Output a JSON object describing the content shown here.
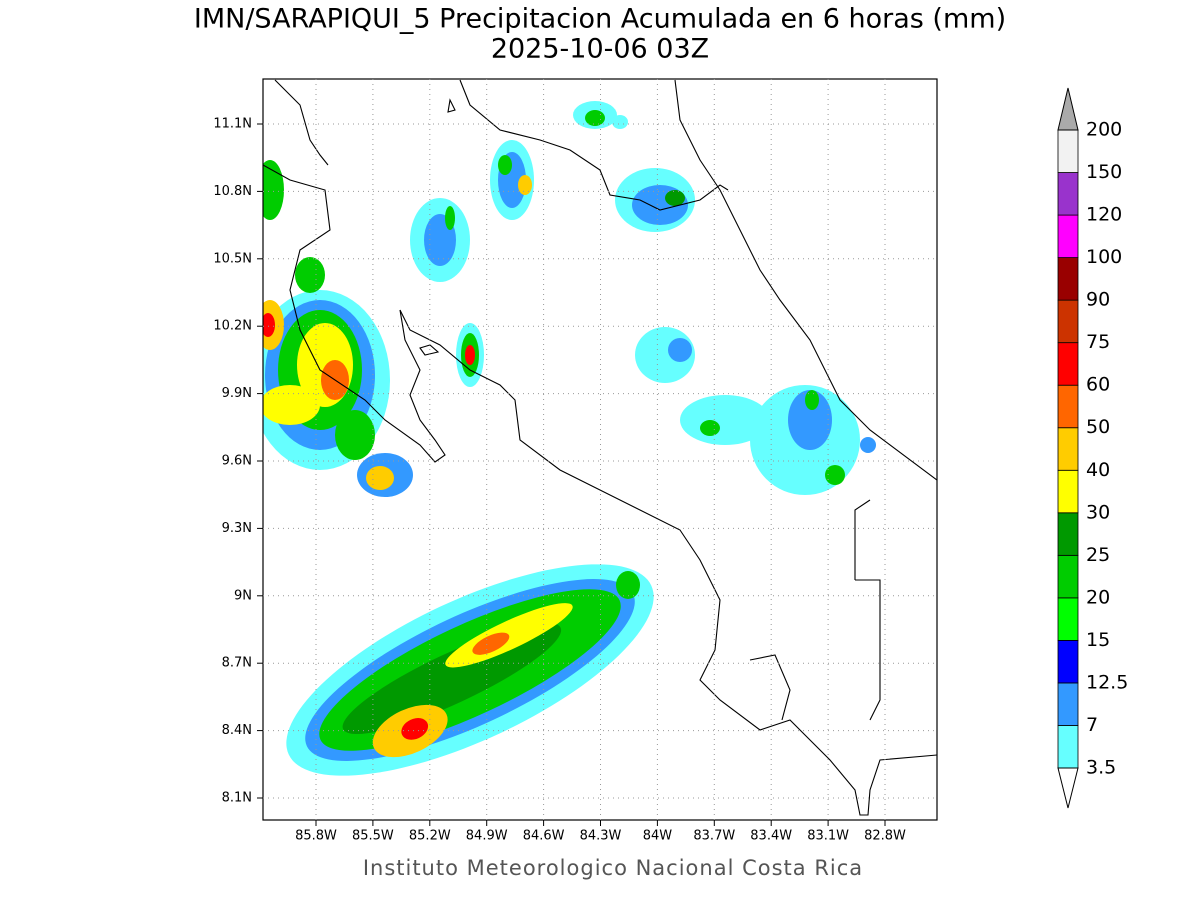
{
  "title": "IMN/SARAPIQUI_5 Precipitacion Acumulada en 6 horas (mm)",
  "subtitle": "2025-10-06 03Z",
  "footer": "Instituto Meteorologico Nacional Costa Rica",
  "lon_ticks": [
    {
      "value": 85.8,
      "label": "85.8W"
    },
    {
      "value": 85.5,
      "label": "85.5W"
    },
    {
      "value": 85.2,
      "label": "85.2W"
    },
    {
      "value": 84.9,
      "label": "84.9W"
    },
    {
      "value": 84.6,
      "label": "84.6W"
    },
    {
      "value": 84.3,
      "label": "84.3W"
    },
    {
      "value": 84,
      "label": "84W"
    },
    {
      "value": 83.7,
      "label": "83.7W"
    },
    {
      "value": 83.4,
      "label": "83.4W"
    },
    {
      "value": 83.1,
      "label": "83.1W"
    },
    {
      "value": 82.8,
      "label": "82.8W"
    }
  ],
  "lat_ticks": [
    {
      "value": 11.1,
      "label": "11.1N"
    },
    {
      "value": 10.8,
      "label": "10.8N"
    },
    {
      "value": 10.5,
      "label": "10.5N"
    },
    {
      "value": 10.2,
      "label": "10.2N"
    },
    {
      "value": 9.9,
      "label": "9.9N"
    },
    {
      "value": 9.6,
      "label": "9.6N"
    },
    {
      "value": 9.3,
      "label": "9.3N"
    },
    {
      "value": 9,
      "label": "9N"
    },
    {
      "value": 8.7,
      "label": "8.7N"
    },
    {
      "value": 8.4,
      "label": "8.4N"
    },
    {
      "value": 8.1,
      "label": "8.1N"
    }
  ],
  "colorbar": {
    "levels": [
      3.5,
      7,
      12.5,
      15,
      20,
      25,
      30,
      40,
      50,
      60,
      75,
      90,
      100,
      120,
      150,
      200
    ],
    "colors": [
      "#66ffff",
      "#3399ff",
      "#0000ff",
      "#00ff00",
      "#00cc00",
      "#009900",
      "#ffff00",
      "#ffcc00",
      "#ff6600",
      "#ff0000",
      "#cc3300",
      "#990000",
      "#ff00ff",
      "#9933cc",
      "#f2f2f2"
    ],
    "over_color": "#aaaaaa",
    "under_color": "#ffffff"
  }
}
